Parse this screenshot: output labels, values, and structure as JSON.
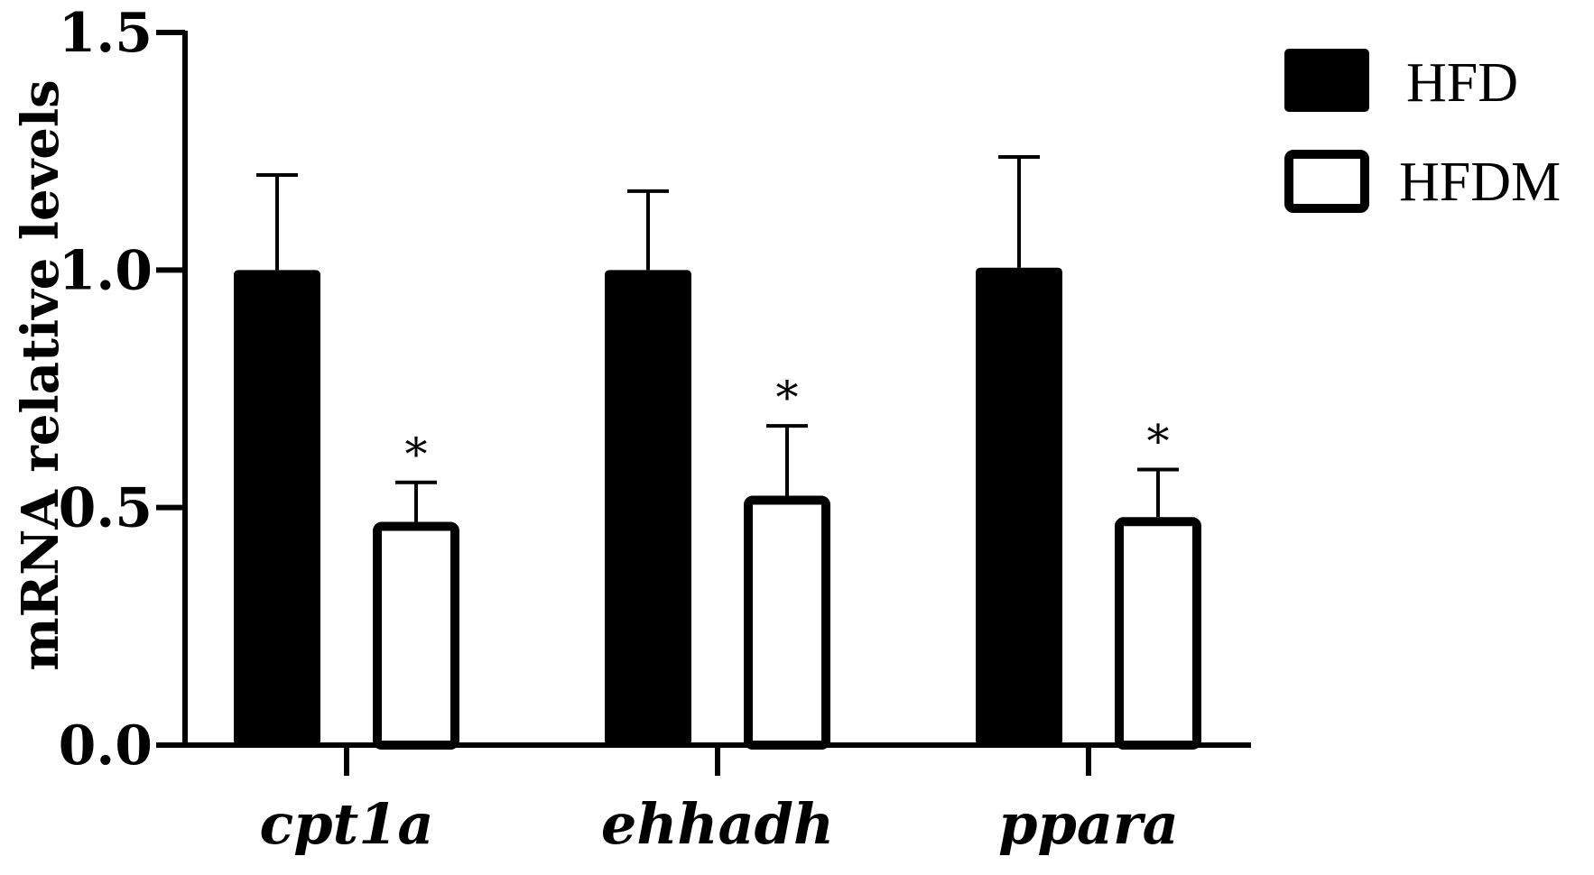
{
  "chart_data": {
    "type": "bar",
    "ylabel": "mRNA relative levels",
    "xlabel": "",
    "ylim": [
      0,
      1.5
    ],
    "yticks": [
      "0.0",
      "0.5",
      "1.0",
      "1.5"
    ],
    "categories": [
      "cpt1a",
      "ehhadh",
      "ppara"
    ],
    "grid": false,
    "legend_position": "top-right",
    "series": [
      {
        "name": "HFD",
        "values": [
          1.0,
          1.0,
          1.005
        ],
        "errors": [
          0.2,
          0.166,
          0.233
        ],
        "fill": "#000000"
      },
      {
        "name": "HFDM",
        "values": [
          0.47,
          0.525,
          0.48
        ],
        "errors": [
          0.083,
          0.147,
          0.1
        ],
        "fill": "#ffffff"
      }
    ],
    "annotations": [
      {
        "series": 1,
        "category": 0,
        "text": "*"
      },
      {
        "series": 1,
        "category": 1,
        "text": "*"
      },
      {
        "series": 1,
        "category": 2,
        "text": "*"
      }
    ]
  }
}
